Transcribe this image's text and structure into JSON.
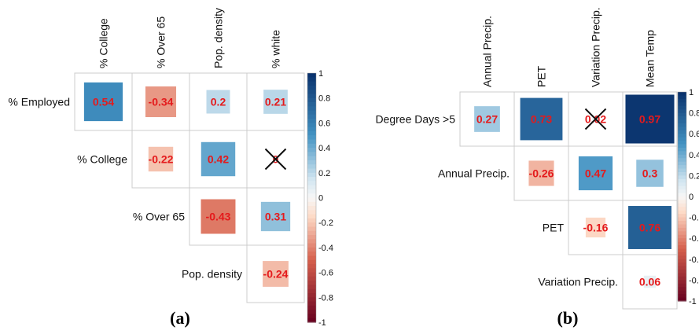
{
  "chart_data": [
    {
      "type": "heatmap",
      "caption": "(a)",
      "columns": [
        "% College",
        "% Over 65",
        "Pop. density",
        "% white"
      ],
      "rows": [
        "% Employed",
        "% College",
        "% Over 65",
        "Pop. density"
      ],
      "cells": [
        {
          "row": 0,
          "col": 0,
          "value": 0.54,
          "label": "0.54"
        },
        {
          "row": 0,
          "col": 1,
          "value": -0.34,
          "label": "-0.34"
        },
        {
          "row": 0,
          "col": 2,
          "value": 0.2,
          "label": "0.2"
        },
        {
          "row": 0,
          "col": 3,
          "value": 0.21,
          "label": "0.21"
        },
        {
          "row": 1,
          "col": 1,
          "value": -0.22,
          "label": "-0.22"
        },
        {
          "row": 1,
          "col": 2,
          "value": 0.42,
          "label": "0.42"
        },
        {
          "row": 1,
          "col": 3,
          "value": 0.0,
          "label": "0",
          "crossed": true
        },
        {
          "row": 2,
          "col": 2,
          "value": -0.43,
          "label": "-0.43"
        },
        {
          "row": 2,
          "col": 3,
          "value": 0.31,
          "label": "0.31"
        },
        {
          "row": 3,
          "col": 3,
          "value": -0.24,
          "label": "-0.24"
        }
      ],
      "colorbar_ticks": [
        "1",
        "0.8",
        "0.6",
        "0.4",
        "0.2",
        "0",
        "-0.2",
        "-0.4",
        "-0.6",
        "-0.8",
        "-1"
      ],
      "colorbar_ticks_visible": [
        "1",
        "0.8",
        "0.6",
        "0.4",
        "0.2",
        "0",
        "-0.2",
        "-0.4",
        "-0.6",
        "-0.8",
        "-1"
      ]
    },
    {
      "type": "heatmap",
      "caption": "(b)",
      "columns": [
        "Annual Precip.",
        "PET",
        "Variation Precip.",
        "Mean Temp"
      ],
      "rows": [
        "Degree Days >5",
        "Annual Precip.",
        "PET",
        "Variation Precip."
      ],
      "cells": [
        {
          "row": 0,
          "col": 0,
          "value": 0.27,
          "label": "0.27"
        },
        {
          "row": 0,
          "col": 1,
          "value": 0.73,
          "label": "0.73"
        },
        {
          "row": 0,
          "col": 2,
          "value": 0.02,
          "label": "0.02",
          "crossed": true
        },
        {
          "row": 0,
          "col": 3,
          "value": 0.97,
          "label": "0.97"
        },
        {
          "row": 1,
          "col": 1,
          "value": -0.26,
          "label": "-0.26"
        },
        {
          "row": 1,
          "col": 2,
          "value": 0.47,
          "label": "0.47"
        },
        {
          "row": 1,
          "col": 3,
          "value": 0.3,
          "label": "0.3"
        },
        {
          "row": 2,
          "col": 2,
          "value": -0.16,
          "label": "-0.16"
        },
        {
          "row": 2,
          "col": 3,
          "value": 0.76,
          "label": "0.76"
        },
        {
          "row": 3,
          "col": 3,
          "value": 0.06,
          "label": "0.06"
        }
      ],
      "colorbar_ticks": [
        "1",
        "0.8",
        "0.6",
        "0.4",
        "0.2",
        "0",
        "-0.2",
        "-0.4",
        "-0.6",
        "-0.8",
        "-1"
      ],
      "colorbar_ticks_visible": [
        "1",
        "0.8",
        "0.6",
        "0.4",
        "0.2",
        "0",
        "-0.2",
        "-0.4",
        "-0.6",
        "-0.8",
        "-1"
      ]
    }
  ],
  "colors": {
    "positive_max": "#08306b",
    "positive_mid": "#4393c3",
    "neutral": "#f7f7f7",
    "negative_mid": "#d6604d",
    "negative_max": "#67001f",
    "value_text": "#e41a1c",
    "grid": "#cccccc"
  }
}
